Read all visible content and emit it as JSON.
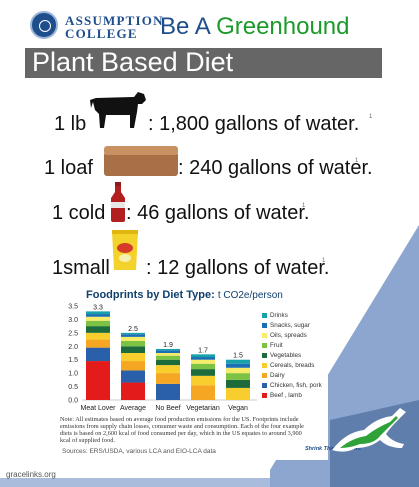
{
  "header": {
    "college_line1": "ASSUMPTION",
    "college_line2": "COLLEGE",
    "headline_part1": "Be A ",
    "headline_part2": "Greenhound"
  },
  "banner": {
    "title": "Plant Based Diet"
  },
  "items": [
    {
      "quantity": "1 lb",
      "icon": "cow-icon",
      "text": ": 1,800 gallons of water.",
      "note": "1"
    },
    {
      "quantity": "1 loaf",
      "icon": "bread-loaf-icon",
      "text": ": 240 gallons of water.",
      "note": "1"
    },
    {
      "quantity": "1 cold",
      "icon": "soda-bottle-icon",
      "text": ": 46 gallons of water.",
      "note": "1"
    },
    {
      "quantity": "1small",
      "icon": "chips-bag-icon",
      "text": ": 12 gallons of water.",
      "note": "1"
    }
  ],
  "chart_data": {
    "type": "bar",
    "stacked": true,
    "title": "Foodprints by Diet Type:",
    "unit": "t CO2e/person",
    "categories": [
      "Meat Lover",
      "Average",
      "No Beef",
      "Vegetarian",
      "Vegan"
    ],
    "totals_labels": [
      "3.3",
      "2.5",
      "1.9",
      "1.7",
      "1.5"
    ],
    "ylim": [
      0,
      3.5
    ],
    "yticks": [
      "0.0",
      "0.5",
      "1.0",
      "1.5",
      "2.0",
      "2.5",
      "3.0",
      "3.5"
    ],
    "grid": false,
    "legend_position": "right",
    "series": [
      {
        "name": "Beef , lamb",
        "color": "#e31b1b",
        "values": [
          1.45,
          0.65,
          0.0,
          0.0,
          0.0
        ]
      },
      {
        "name": "Chicken, fish, pork",
        "color": "#2a5faa",
        "values": [
          0.5,
          0.45,
          0.6,
          0.0,
          0.0
        ]
      },
      {
        "name": "Dairy",
        "color": "#f5a623",
        "values": [
          0.3,
          0.35,
          0.4,
          0.55,
          0.0
        ]
      },
      {
        "name": "Cereals, breads",
        "color": "#f8ce2e",
        "values": [
          0.25,
          0.3,
          0.3,
          0.35,
          0.45
        ]
      },
      {
        "name": "Vegetables",
        "color": "#1d6b3a",
        "values": [
          0.25,
          0.25,
          0.2,
          0.25,
          0.3
        ]
      },
      {
        "name": "Fruit",
        "color": "#7cc243",
        "values": [
          0.2,
          0.2,
          0.15,
          0.2,
          0.25
        ]
      },
      {
        "name": "Oils, spreads",
        "color": "#f6ec6a",
        "values": [
          0.15,
          0.15,
          0.1,
          0.15,
          0.2
        ]
      },
      {
        "name": "Snacks, sugar",
        "color": "#1b6fb5",
        "values": [
          0.1,
          0.1,
          0.1,
          0.1,
          0.15
        ]
      },
      {
        "name": "Drinks",
        "color": "#17a1a8",
        "values": [
          0.1,
          0.05,
          0.05,
          0.1,
          0.15
        ]
      }
    ]
  },
  "chart_note": "Note: All estimates based on average food production emissions for the US. Footprints include emissions from supply chain losses, consumer waste and consumption. Each of the four example diets is based on 2,600 kcal of food consumed per day, which in the US equates to around 3,900 kcal of supplied food.",
  "sources": "Sources:  ERS/USDA, various LCA and EIO-LCA data",
  "brand": "Shrink That Footprint",
  "credit": "gracelinks.org",
  "colors": {
    "college_blue": "#1f4e8c",
    "greenhound_green": "#1c9a2a",
    "banner_gray": "#666666"
  }
}
